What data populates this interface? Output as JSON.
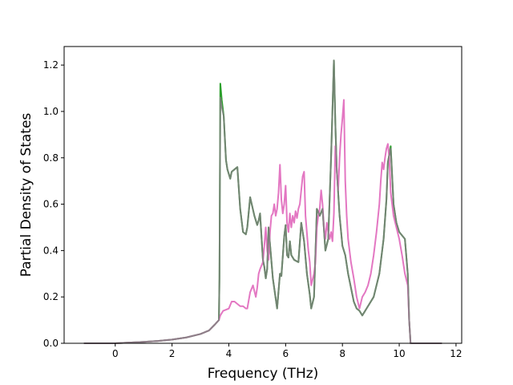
{
  "chart_data": {
    "type": "line",
    "xlabel": "Frequency (THz)",
    "ylabel": "Partial Density of States",
    "xlim": [
      -1.8,
      12.2
    ],
    "ylim": [
      0,
      1.28
    ],
    "xticks": [
      "0",
      "2",
      "4",
      "6",
      "8",
      "10",
      "12"
    ],
    "yticks": [
      "0.0",
      "0.2",
      "0.4",
      "0.6",
      "0.8",
      "1.0",
      "1.2"
    ],
    "grid": false,
    "legend": "none",
    "series": [
      {
        "color": "#2ca02c",
        "x": [
          -1.1,
          0,
          0.5,
          1.0,
          1.5,
          2.0,
          2.5,
          3.0,
          3.3,
          3.5,
          3.65,
          3.67,
          3.7,
          3.75,
          3.82,
          3.9,
          3.95,
          4.05,
          4.1,
          4.2,
          4.3,
          4.4,
          4.5,
          4.6,
          4.65,
          4.75,
          4.9,
          5.0,
          5.05,
          5.1,
          5.2,
          5.25,
          5.3,
          5.35,
          5.4,
          5.55,
          5.7,
          5.8,
          5.85,
          5.95,
          6.0,
          6.05,
          6.1,
          6.15,
          6.2,
          6.3,
          6.45,
          6.55,
          6.65,
          6.75,
          6.85,
          6.9,
          7.0,
          7.1,
          7.2,
          7.3,
          7.4,
          7.5,
          7.6,
          7.7,
          7.75,
          7.8,
          7.9,
          8.0,
          8.1,
          8.2,
          8.4,
          8.5,
          8.6,
          8.7,
          8.9,
          9.1,
          9.3,
          9.45,
          9.55,
          9.6,
          9.7,
          9.8,
          9.9,
          10.0,
          10.2,
          10.3,
          10.35,
          10.4,
          11.5
        ],
        "y": [
          0.0,
          0.0,
          0.003,
          0.006,
          0.01,
          0.016,
          0.025,
          0.04,
          0.055,
          0.08,
          0.1,
          0.28,
          1.12,
          1.05,
          0.98,
          0.79,
          0.75,
          0.71,
          0.74,
          0.75,
          0.76,
          0.58,
          0.48,
          0.47,
          0.5,
          0.63,
          0.55,
          0.51,
          0.53,
          0.56,
          0.36,
          0.33,
          0.28,
          0.32,
          0.5,
          0.28,
          0.15,
          0.3,
          0.29,
          0.46,
          0.51,
          0.38,
          0.37,
          0.44,
          0.38,
          0.36,
          0.35,
          0.52,
          0.44,
          0.3,
          0.21,
          0.15,
          0.2,
          0.58,
          0.55,
          0.58,
          0.4,
          0.45,
          0.8,
          1.22,
          0.95,
          0.75,
          0.55,
          0.42,
          0.38,
          0.3,
          0.18,
          0.15,
          0.14,
          0.12,
          0.16,
          0.2,
          0.3,
          0.45,
          0.62,
          0.78,
          0.85,
          0.6,
          0.52,
          0.48,
          0.45,
          0.3,
          0.1,
          0.0,
          0.0
        ]
      },
      {
        "color": "#e377c2",
        "x": [
          -1.1,
          0,
          0.5,
          1.0,
          1.5,
          2.0,
          2.5,
          3.0,
          3.3,
          3.5,
          3.65,
          3.7,
          3.8,
          4.0,
          4.1,
          4.2,
          4.3,
          4.4,
          4.5,
          4.6,
          4.65,
          4.75,
          4.85,
          4.95,
          5.0,
          5.05,
          5.1,
          5.2,
          5.25,
          5.3,
          5.35,
          5.4,
          5.45,
          5.5,
          5.55,
          5.6,
          5.65,
          5.7,
          5.75,
          5.8,
          5.85,
          5.9,
          5.95,
          6.0,
          6.05,
          6.1,
          6.15,
          6.2,
          6.25,
          6.3,
          6.35,
          6.4,
          6.45,
          6.5,
          6.6,
          6.65,
          6.7,
          6.8,
          6.85,
          6.9,
          7.0,
          7.05,
          7.1,
          7.15,
          7.2,
          7.25,
          7.3,
          7.35,
          7.4,
          7.45,
          7.5,
          7.55,
          7.6,
          7.65,
          7.7,
          7.75,
          7.8,
          7.85,
          7.9,
          7.95,
          8.0,
          8.05,
          8.1,
          8.15,
          8.2,
          8.3,
          8.4,
          8.5,
          8.6,
          8.7,
          8.8,
          8.9,
          9.0,
          9.1,
          9.2,
          9.3,
          9.35,
          9.4,
          9.45,
          9.5,
          9.55,
          9.6,
          9.65,
          9.7,
          9.75,
          9.8,
          9.9,
          10.0,
          10.1,
          10.2,
          10.3,
          10.35,
          10.4,
          11.5
        ],
        "y": [
          0.0,
          0.0,
          0.003,
          0.006,
          0.01,
          0.016,
          0.025,
          0.04,
          0.055,
          0.08,
          0.1,
          0.12,
          0.14,
          0.15,
          0.18,
          0.18,
          0.17,
          0.16,
          0.16,
          0.15,
          0.15,
          0.22,
          0.25,
          0.2,
          0.24,
          0.3,
          0.32,
          0.35,
          0.42,
          0.5,
          0.4,
          0.36,
          0.48,
          0.55,
          0.56,
          0.6,
          0.55,
          0.58,
          0.65,
          0.77,
          0.62,
          0.56,
          0.6,
          0.68,
          0.52,
          0.48,
          0.56,
          0.5,
          0.55,
          0.52,
          0.57,
          0.54,
          0.58,
          0.6,
          0.72,
          0.74,
          0.55,
          0.4,
          0.35,
          0.25,
          0.3,
          0.35,
          0.5,
          0.55,
          0.58,
          0.66,
          0.6,
          0.5,
          0.45,
          0.52,
          0.48,
          0.45,
          0.48,
          0.44,
          0.56,
          0.85,
          0.75,
          0.66,
          0.8,
          0.9,
          0.97,
          1.05,
          0.7,
          0.55,
          0.45,
          0.35,
          0.28,
          0.2,
          0.15,
          0.2,
          0.22,
          0.25,
          0.3,
          0.38,
          0.48,
          0.6,
          0.7,
          0.78,
          0.75,
          0.8,
          0.84,
          0.86,
          0.8,
          0.65,
          0.6,
          0.55,
          0.5,
          0.45,
          0.38,
          0.3,
          0.25,
          0.1,
          0.0,
          0.0
        ]
      },
      {
        "color": "#7f7f7f",
        "x": [
          -1.1,
          0,
          0.5,
          1.0,
          1.5,
          2.0,
          2.5,
          3.0,
          3.3,
          3.5,
          3.65,
          3.67,
          3.7,
          3.75,
          3.82,
          3.9,
          3.95,
          4.05,
          4.1,
          4.2,
          4.3,
          4.4,
          4.5,
          4.6,
          4.65,
          4.75,
          4.9,
          5.0,
          5.05,
          5.1,
          5.2,
          5.25,
          5.3,
          5.35,
          5.4,
          5.55,
          5.7,
          5.8,
          5.85,
          5.95,
          6.0,
          6.05,
          6.1,
          6.15,
          6.2,
          6.3,
          6.45,
          6.55,
          6.65,
          6.75,
          6.85,
          6.9,
          7.0,
          7.1,
          7.2,
          7.3,
          7.4,
          7.5,
          7.6,
          7.7,
          7.75,
          7.8,
          7.9,
          8.0,
          8.1,
          8.2,
          8.4,
          8.5,
          8.6,
          8.7,
          8.9,
          9.1,
          9.3,
          9.45,
          9.55,
          9.6,
          9.7,
          9.8,
          9.9,
          10.0,
          10.2,
          10.3,
          10.35,
          10.4,
          11.5
        ],
        "y": [
          0.0,
          0.0,
          0.003,
          0.006,
          0.01,
          0.016,
          0.025,
          0.04,
          0.055,
          0.08,
          0.1,
          0.28,
          1.06,
          1.02,
          0.98,
          0.79,
          0.75,
          0.71,
          0.74,
          0.75,
          0.76,
          0.58,
          0.48,
          0.47,
          0.5,
          0.63,
          0.55,
          0.51,
          0.53,
          0.56,
          0.36,
          0.33,
          0.28,
          0.32,
          0.5,
          0.28,
          0.15,
          0.3,
          0.29,
          0.46,
          0.51,
          0.38,
          0.37,
          0.44,
          0.38,
          0.36,
          0.35,
          0.52,
          0.44,
          0.3,
          0.21,
          0.15,
          0.2,
          0.58,
          0.55,
          0.58,
          0.4,
          0.45,
          0.8,
          1.22,
          0.95,
          0.75,
          0.55,
          0.42,
          0.38,
          0.3,
          0.18,
          0.15,
          0.14,
          0.12,
          0.16,
          0.2,
          0.3,
          0.45,
          0.62,
          0.78,
          0.84,
          0.6,
          0.52,
          0.48,
          0.45,
          0.3,
          0.1,
          0.0,
          0.0
        ]
      }
    ]
  }
}
